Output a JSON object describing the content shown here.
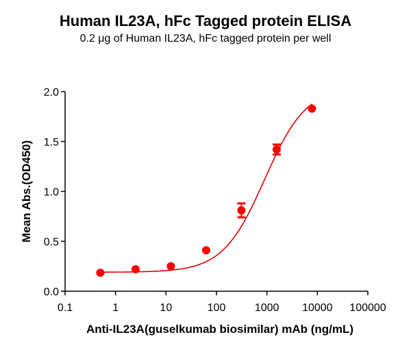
{
  "chart_data": {
    "type": "scatter",
    "title": "Human IL23A, hFc Tagged protein ELISA",
    "subtitle": "0.2 μg of Human IL23A, hFc tagged protein per well",
    "xlabel": "Anti-IL23A(guselkumab biosimilar) mAb (ng/mL)",
    "ylabel": "Mean Abs.(OD450)",
    "xscale": "log",
    "xlim": [
      0.1,
      100000
    ],
    "ylim": [
      0.0,
      2.0
    ],
    "x_ticks": [
      "0.1",
      "1",
      "10",
      "100",
      "1000",
      "10000",
      "100000"
    ],
    "y_ticks": [
      "0.0",
      "0.5",
      "1.0",
      "1.5",
      "2.0"
    ],
    "series": [
      {
        "name": "Human IL23A, hFc",
        "color": "#ff0000",
        "fit": "4PL sigmoidal",
        "x": [
          0.5,
          2.5,
          12.5,
          62.5,
          312,
          1563,
          7813
        ],
        "y": [
          0.185,
          0.22,
          0.25,
          0.41,
          0.81,
          1.42,
          1.83
        ],
        "error": [
          0.0,
          0.0,
          0.0,
          0.0,
          0.07,
          0.05,
          0.0
        ]
      }
    ],
    "grid": false,
    "legend": "none"
  }
}
